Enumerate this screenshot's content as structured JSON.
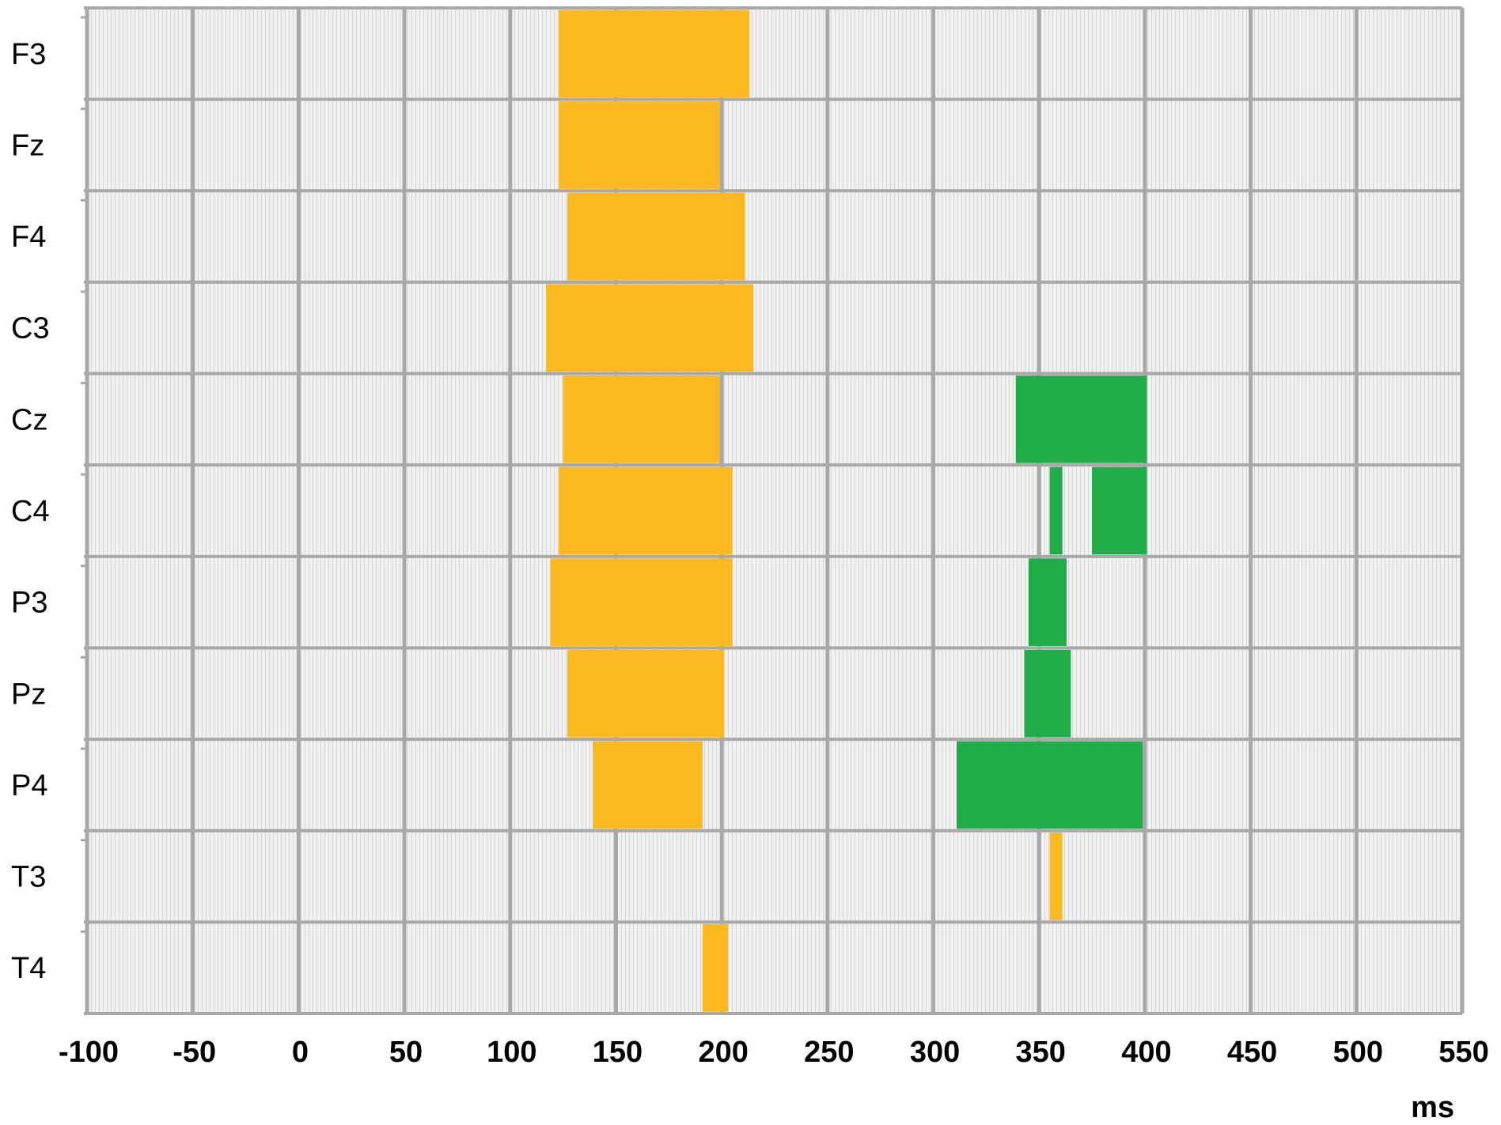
{
  "chart_data": {
    "type": "bar",
    "subtype": "timeline-raster",
    "title": "",
    "xlabel": "ms",
    "ylabel": "",
    "xlim": [
      -100,
      550
    ],
    "x_ticks": [
      -100,
      -50,
      0,
      50,
      100,
      150,
      200,
      250,
      300,
      350,
      400,
      450,
      500,
      550
    ],
    "x_tick_labels": [
      "-100",
      "-50",
      "0",
      "50",
      "100",
      "150",
      "200",
      "250",
      "300",
      "350",
      "400",
      "450",
      "500",
      "550"
    ],
    "grid": true,
    "colors": {
      "orange": "#FBB81F",
      "green": "#21AC4A",
      "cell_bg": "#EFEFEF",
      "grid": "#A8A8A8"
    },
    "channels": [
      "F3",
      "Fz",
      "F4",
      "C3",
      "Cz",
      "C4",
      "P3",
      "Pz",
      "P4",
      "T3",
      "T4"
    ],
    "series": [
      {
        "color": "orange",
        "intervals": [
          {
            "channel": "F3",
            "start": 123,
            "end": 213
          },
          {
            "channel": "Fz",
            "start": 123,
            "end": 199
          },
          {
            "channel": "F4",
            "start": 127,
            "end": 211
          },
          {
            "channel": "C3",
            "start": 117,
            "end": 215
          },
          {
            "channel": "Cz",
            "start": 125,
            "end": 199
          },
          {
            "channel": "C4",
            "start": 123,
            "end": 205
          },
          {
            "channel": "P3",
            "start": 119,
            "end": 205
          },
          {
            "channel": "Pz",
            "start": 127,
            "end": 201
          },
          {
            "channel": "P4",
            "start": 139,
            "end": 191
          },
          {
            "channel": "T3",
            "start": 355,
            "end": 361
          },
          {
            "channel": "T4",
            "start": 191,
            "end": 203
          }
        ]
      },
      {
        "color": "green",
        "intervals": [
          {
            "channel": "Cz",
            "start": 339,
            "end": 401
          },
          {
            "channel": "C4",
            "start": 355,
            "end": 361
          },
          {
            "channel": "C4",
            "start": 375,
            "end": 401
          },
          {
            "channel": "P3",
            "start": 345,
            "end": 363
          },
          {
            "channel": "Pz",
            "start": 343,
            "end": 365
          },
          {
            "channel": "P4",
            "start": 311,
            "end": 399
          }
        ]
      }
    ]
  }
}
